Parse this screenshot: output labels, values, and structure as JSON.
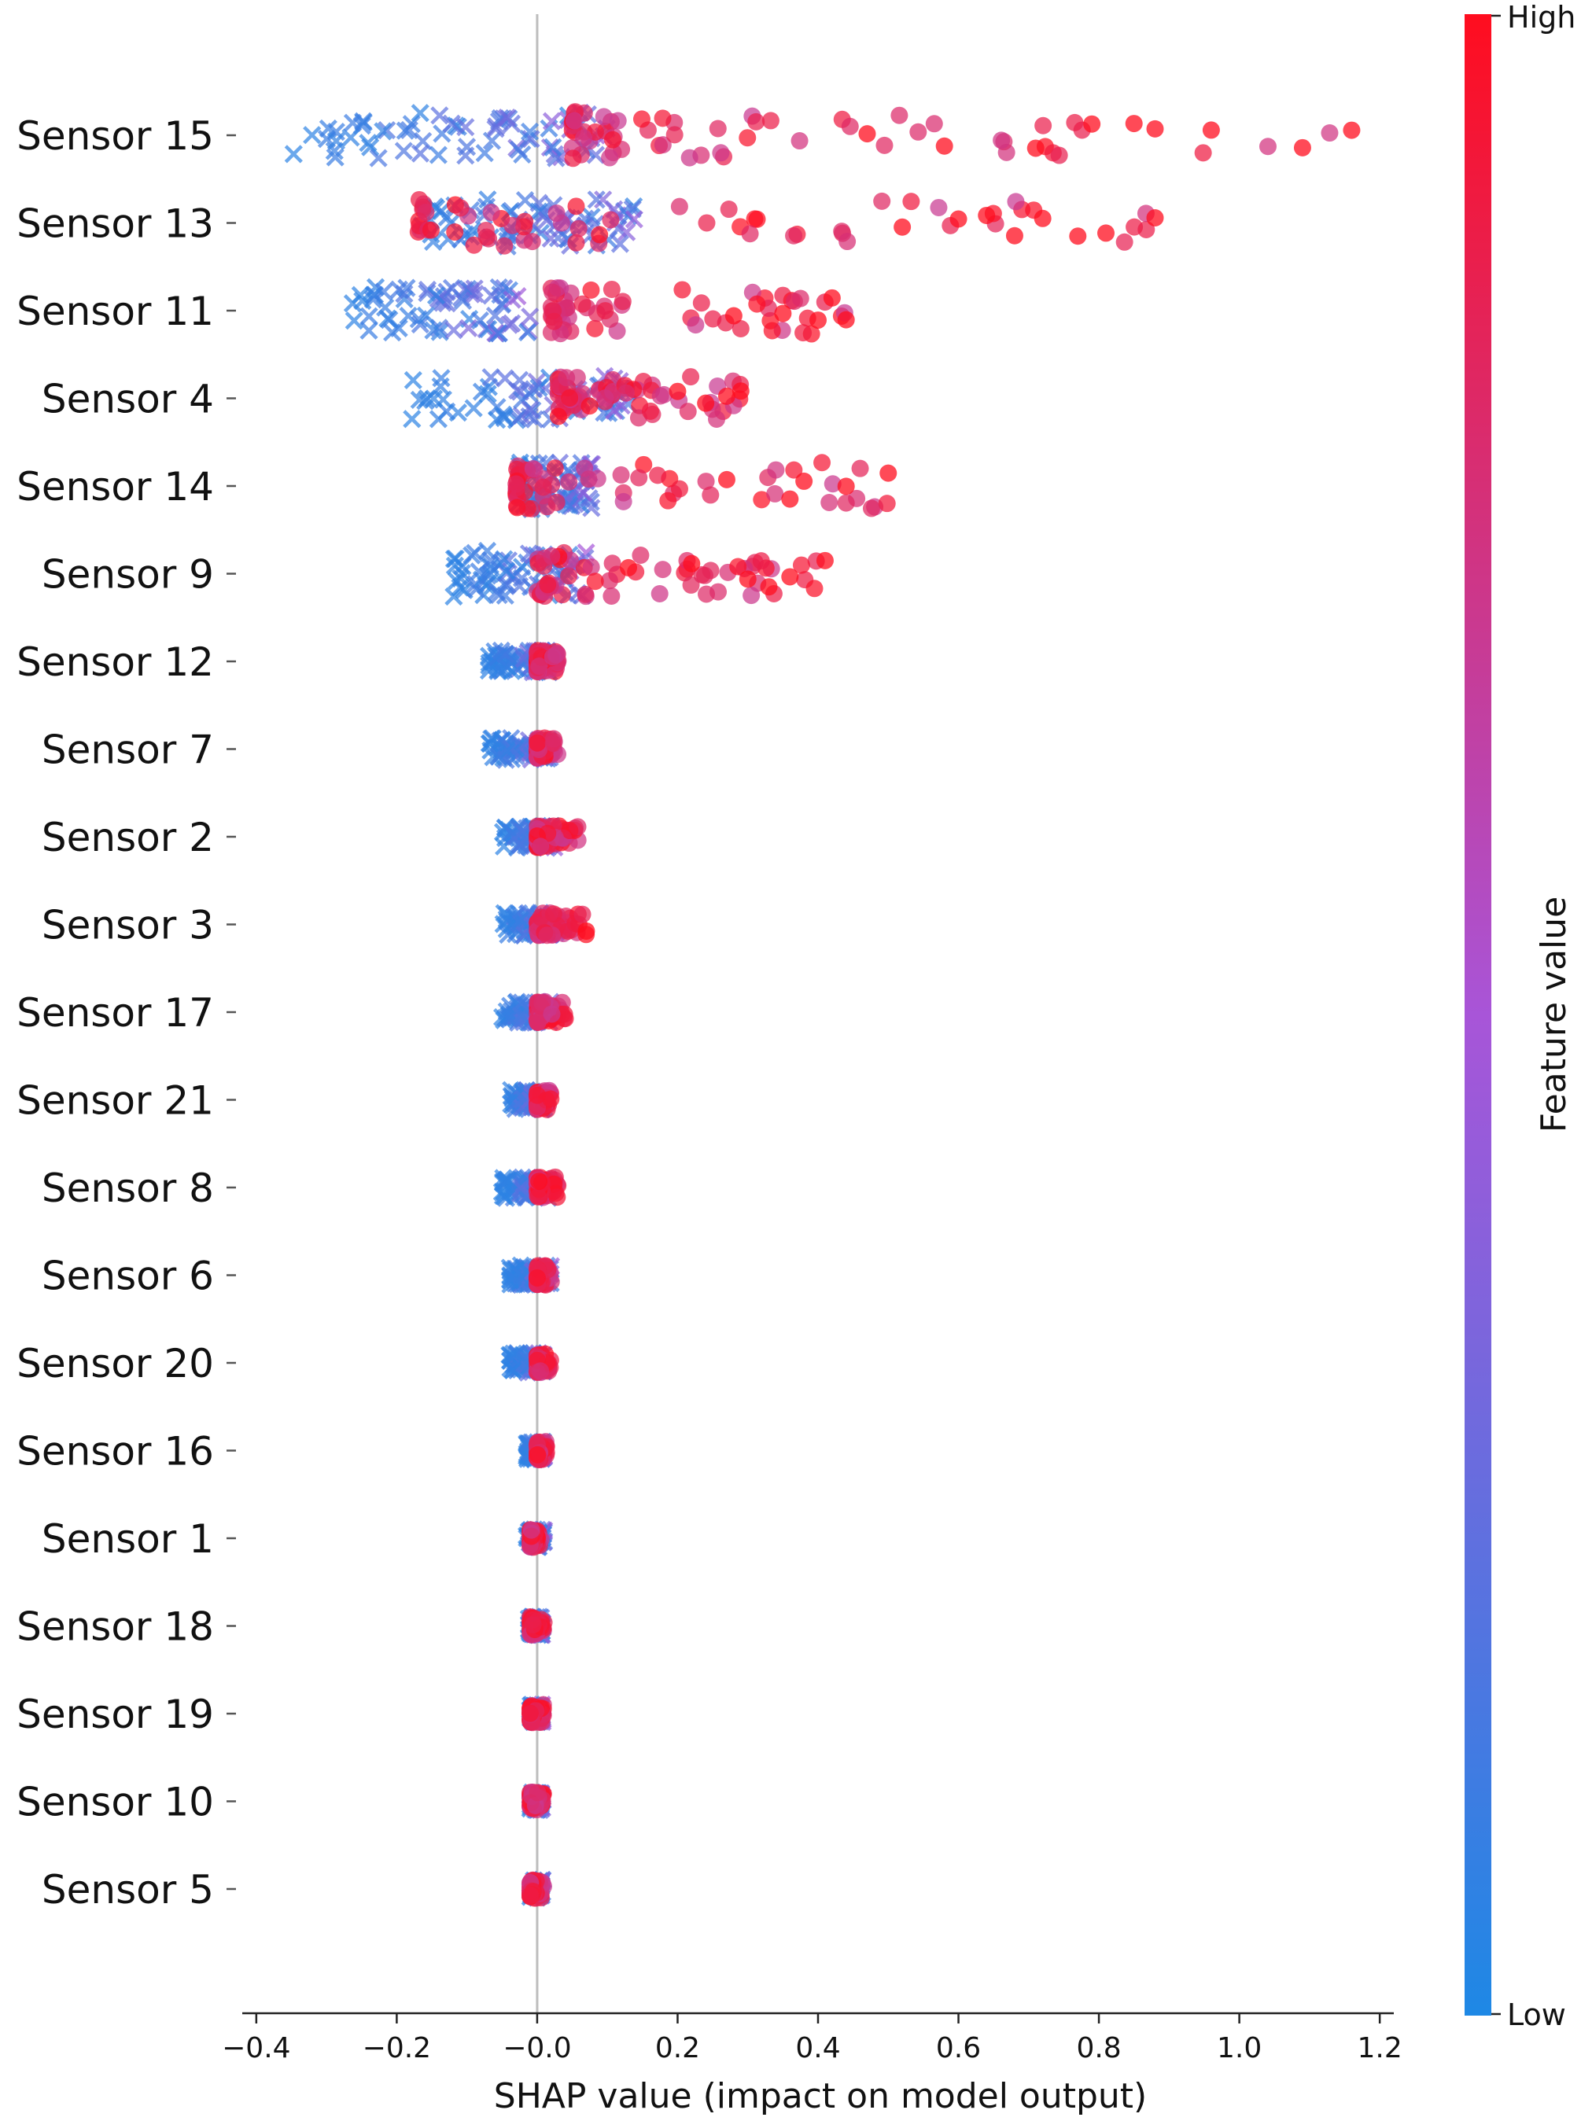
{
  "chart_data": {
    "type": "scatter",
    "subtype": "shap-beeswarm",
    "title": "",
    "xlabel": "SHAP value (impact on model output)",
    "ylabel": "",
    "xlim": [
      -0.42,
      1.22
    ],
    "x_ticks": [
      -0.4,
      -0.2,
      0.0,
      0.2,
      0.4,
      0.6,
      0.8,
      1.0,
      1.2
    ],
    "x_tick_labels": [
      "−0.4",
      "−0.2",
      "−0.0",
      "0.2",
      "0.4",
      "0.6",
      "0.8",
      "1.0",
      "1.2"
    ],
    "zero_line": 0.0,
    "grid": false,
    "colorbar": {
      "title": "Feature value",
      "high_label": "High",
      "low_label": "Low",
      "low_color": "#1e88e5",
      "mid_color": "#a855d8",
      "high_color": "#ff0d1f",
      "position": "right"
    },
    "markers": {
      "low_value": "x",
      "high_value": "circle"
    },
    "features": [
      {
        "name": "Sensor 15",
        "low_range": [
          -0.35,
          0.1
        ],
        "high_range": [
          0.05,
          1.16
        ],
        "high_outliers": [
          0.47,
          0.58,
          0.71,
          0.79,
          0.85,
          0.88,
          0.96,
          1.09,
          1.16
        ]
      },
      {
        "name": "Sensor 13",
        "low_range": [
          -0.17,
          0.15
        ],
        "high_range": [
          -0.17,
          0.88
        ],
        "high_outliers": [
          0.52,
          0.6,
          0.64,
          0.68,
          0.72,
          0.77,
          0.81,
          0.88
        ]
      },
      {
        "name": "Sensor 11",
        "low_range": [
          -0.27,
          -0.01
        ],
        "high_range": [
          0.02,
          0.44
        ],
        "high_outliers": [
          0.28,
          0.35,
          0.4,
          0.42,
          0.44
        ]
      },
      {
        "name": "Sensor 4",
        "low_range": [
          -0.18,
          0.13
        ],
        "high_range": [
          0.03,
          0.29
        ],
        "high_outliers": [
          0.2,
          0.24,
          0.27,
          0.29
        ]
      },
      {
        "name": "Sensor 14",
        "low_range": [
          -0.03,
          0.08
        ],
        "high_range": [
          -0.03,
          0.5
        ],
        "high_outliers": [
          0.27,
          0.36,
          0.38,
          0.44,
          0.5
        ]
      },
      {
        "name": "Sensor 9",
        "low_range": [
          -0.12,
          0.07
        ],
        "high_range": [
          0.0,
          0.41
        ],
        "high_outliers": [
          0.13,
          0.22,
          0.3,
          0.33,
          0.36,
          0.41
        ]
      },
      {
        "name": "Sensor 12",
        "low_range": [
          -0.07,
          0.02
        ],
        "high_range": [
          0.0,
          0.03
        ],
        "high_outliers": []
      },
      {
        "name": "Sensor 7",
        "low_range": [
          -0.07,
          0.02
        ],
        "high_range": [
          0.0,
          0.03
        ],
        "high_outliers": []
      },
      {
        "name": "Sensor 2",
        "low_range": [
          -0.05,
          0.03
        ],
        "high_range": [
          0.0,
          0.06
        ],
        "high_outliers": []
      },
      {
        "name": "Sensor 3",
        "low_range": [
          -0.05,
          0.03
        ],
        "high_range": [
          0.0,
          0.07
        ],
        "high_outliers": [
          0.07
        ]
      },
      {
        "name": "Sensor 17",
        "low_range": [
          -0.05,
          0.02
        ],
        "high_range": [
          0.0,
          0.04
        ],
        "high_outliers": []
      },
      {
        "name": "Sensor 21",
        "low_range": [
          -0.04,
          0.01
        ],
        "high_range": [
          0.0,
          0.02
        ],
        "high_outliers": []
      },
      {
        "name": "Sensor 8",
        "low_range": [
          -0.05,
          0.02
        ],
        "high_range": [
          0.0,
          0.03
        ],
        "high_outliers": []
      },
      {
        "name": "Sensor 6",
        "low_range": [
          -0.04,
          0.02
        ],
        "high_range": [
          0.0,
          0.02
        ],
        "high_outliers": []
      },
      {
        "name": "Sensor 20",
        "low_range": [
          -0.04,
          0.01
        ],
        "high_range": [
          0.0,
          0.02
        ],
        "high_outliers": []
      },
      {
        "name": "Sensor 16",
        "low_range": [
          -0.015,
          0.01
        ],
        "high_range": [
          0.0,
          0.015
        ],
        "high_outliers": []
      },
      {
        "name": "Sensor 1",
        "low_range": [
          -0.015,
          0.01
        ],
        "high_range": [
          -0.01,
          0.01
        ],
        "high_outliers": []
      },
      {
        "name": "Sensor 18",
        "low_range": [
          -0.012,
          0.008
        ],
        "high_range": [
          -0.01,
          0.01
        ],
        "high_outliers": []
      },
      {
        "name": "Sensor 19",
        "low_range": [
          -0.01,
          0.008
        ],
        "high_range": [
          -0.01,
          0.01
        ],
        "high_outliers": []
      },
      {
        "name": "Sensor 10",
        "low_range": [
          -0.01,
          0.008
        ],
        "high_range": [
          -0.01,
          0.01
        ],
        "high_outliers": []
      },
      {
        "name": "Sensor 5",
        "low_range": [
          -0.01,
          0.008
        ],
        "high_range": [
          -0.01,
          0.01
        ],
        "high_outliers": []
      }
    ]
  }
}
